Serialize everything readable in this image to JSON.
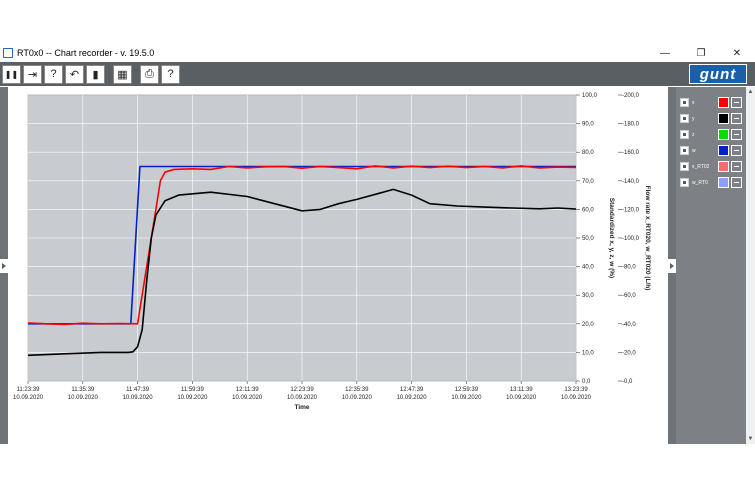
{
  "window": {
    "title": "RT0x0  --  Chart recorder - v. 19.5.0",
    "minimize_glyph": "—",
    "maximize_glyph": "❐",
    "close_glyph": "✕"
  },
  "toolbar": {
    "buttons": [
      {
        "name": "pause-icon",
        "glyph": "❚❚"
      },
      {
        "name": "export-icon",
        "glyph": "⇥"
      },
      {
        "name": "scale-query-icon",
        "glyph": "?"
      },
      {
        "name": "undo-icon",
        "glyph": "↶"
      },
      {
        "name": "trash-icon",
        "glyph": "▮"
      },
      {
        "name": "grid-icon",
        "glyph": "▦"
      },
      {
        "name": "print-icon",
        "glyph": "⎙"
      },
      {
        "name": "help-icon",
        "glyph": "?"
      }
    ],
    "logo_text": "gunt"
  },
  "legend": {
    "items": [
      {
        "label": "x",
        "color": "#ff0000",
        "checked": true
      },
      {
        "label": "y",
        "color": "#000000",
        "checked": true
      },
      {
        "label": "z",
        "color": "#00e000",
        "checked": true
      },
      {
        "label": "w",
        "color": "#0022c8",
        "checked": true
      },
      {
        "label": "x_RT02",
        "color": "#f07070",
        "checked": true
      },
      {
        "label": "w_RT0",
        "color": "#8fa0ff",
        "checked": true
      }
    ]
  },
  "chart_data": {
    "type": "line",
    "xlabel": "Time",
    "ylabel_right1": "Standardized  x, y, z, w   (%)",
    "ylabel_right2": "Flow rate  x_RT020, w_RT020   (L/h)",
    "x_ticks": [
      {
        "time": "11:23:39",
        "date": "10.09.2020"
      },
      {
        "time": "11:35:39",
        "date": "10.09.2020"
      },
      {
        "time": "11:47:39",
        "date": "10.09.2020"
      },
      {
        "time": "11:59:39",
        "date": "10.09.2020"
      },
      {
        "time": "12:11:39",
        "date": "10.09.2020"
      },
      {
        "time": "12:23:39",
        "date": "10.09.2020"
      },
      {
        "time": "12:35:39",
        "date": "10.09.2020"
      },
      {
        "time": "12:47:39",
        "date": "10.09.2020"
      },
      {
        "time": "12:59:39",
        "date": "10.09.2020"
      },
      {
        "time": "13:11:39",
        "date": "10.09.2020"
      },
      {
        "time": "13:23:39",
        "date": "10.09.2020"
      }
    ],
    "x_range_minutes": [
      0,
      120
    ],
    "y1_ticks": [
      "0,0",
      "10,0",
      "20,0",
      "30,0",
      "40,0",
      "50,0",
      "60,0",
      "70,0",
      "80,0",
      "90,0",
      "100,0"
    ],
    "y1_range": [
      0,
      100
    ],
    "y2_ticks": [
      "-0,0",
      "-20,0",
      "-40,0",
      "-60,0",
      "-80,0",
      "-100,0",
      "-120,0",
      "-140,0",
      "-160,0",
      "-180,0",
      "-200,0"
    ],
    "y2_range": [
      0,
      200
    ],
    "grid": true,
    "series": [
      {
        "color": "#0022c8",
        "points": [
          [
            0,
            20
          ],
          [
            22.5,
            20
          ],
          [
            24.5,
            75
          ],
          [
            120,
            75
          ]
        ]
      },
      {
        "color": "#ff0000",
        "points": [
          [
            0,
            20.3
          ],
          [
            4,
            20
          ],
          [
            8,
            19.8
          ],
          [
            12,
            20.2
          ],
          [
            16,
            20
          ],
          [
            20,
            20.1
          ],
          [
            24,
            20
          ],
          [
            26,
            40
          ],
          [
            28,
            60
          ],
          [
            29,
            70
          ],
          [
            30,
            73
          ],
          [
            32,
            74
          ],
          [
            36,
            74.2
          ],
          [
            40,
            74
          ],
          [
            44,
            75
          ],
          [
            48,
            74.5
          ],
          [
            52,
            74.9
          ],
          [
            56,
            75
          ],
          [
            60,
            74.4
          ],
          [
            64,
            75
          ],
          [
            68,
            74.6
          ],
          [
            72,
            74.2
          ],
          [
            76,
            75.2
          ],
          [
            80,
            74.5
          ],
          [
            84,
            75.1
          ],
          [
            88,
            74.6
          ],
          [
            92,
            75.1
          ],
          [
            96,
            74.6
          ],
          [
            100,
            75
          ],
          [
            104,
            74.5
          ],
          [
            108,
            75.2
          ],
          [
            112,
            74.5
          ],
          [
            116,
            74.8
          ],
          [
            120,
            74.7
          ]
        ]
      },
      {
        "color": "#000000",
        "points": [
          [
            0,
            9
          ],
          [
            8,
            9.5
          ],
          [
            16,
            10
          ],
          [
            22,
            10
          ],
          [
            23,
            10.2
          ],
          [
            24,
            12
          ],
          [
            25,
            18
          ],
          [
            26,
            35
          ],
          [
            27,
            50
          ],
          [
            28,
            58
          ],
          [
            30,
            63
          ],
          [
            33,
            65
          ],
          [
            40,
            66
          ],
          [
            48,
            64.5
          ],
          [
            54,
            62
          ],
          [
            60,
            59.5
          ],
          [
            64,
            60
          ],
          [
            68,
            62
          ],
          [
            72,
            63.5
          ],
          [
            80,
            67
          ],
          [
            84,
            65
          ],
          [
            88,
            62
          ],
          [
            94,
            61.2
          ],
          [
            100,
            60.8
          ],
          [
            106,
            60.5
          ],
          [
            112,
            60.2
          ],
          [
            116,
            60.5
          ],
          [
            120,
            60.1
          ]
        ]
      }
    ]
  }
}
